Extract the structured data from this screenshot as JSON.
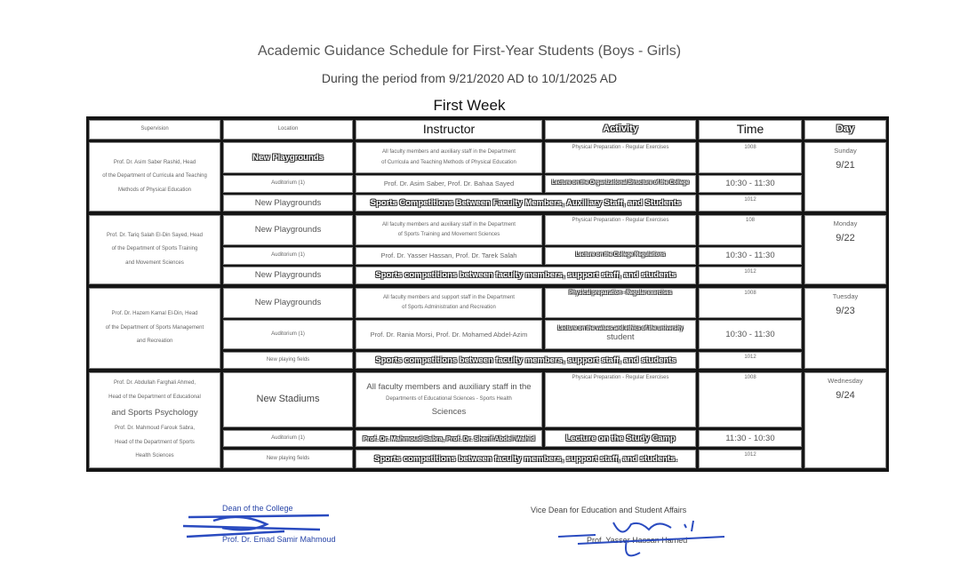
{
  "header": {
    "title": "Academic Guidance Schedule for First-Year Students (Boys - Girls)",
    "period": "During the period from 9/21/2020 AD to 10/1/2025 AD",
    "week": "First Week"
  },
  "columns": [
    "Supervision",
    "Location",
    "Instructor",
    "Activity",
    "Time",
    "Day"
  ],
  "days": [
    {
      "day": "Sunday",
      "date": "9/21",
      "supervision": [
        "Prof. Dr. Asim Saber Rashid, Head",
        "of the Department of Curricula and Teaching",
        "Methods of Physical Education"
      ],
      "sessions": [
        {
          "location": "New Playgrounds",
          "instructor": [
            "All faculty members and auxiliary staff in the Department",
            "of Curricula and Teaching Methods of Physical Education"
          ],
          "activity": "Physical Preparation - Regular Exercises",
          "time": "1008"
        },
        {
          "location": "Auditorium (1)",
          "instructor": [
            "Prof. Dr. Asim Saber, Prof. Dr. Bahaa Sayed"
          ],
          "activity": "Lecture on the Organizational Structure of the College",
          "time": "10:30 - 11:30"
        },
        {
          "location": "New Playgrounds",
          "combined": "Sports Competitions Between Faculty Members, Auxiliary Staff, and Students",
          "time": "1012"
        }
      ]
    },
    {
      "day": "Monday",
      "date": "9/22",
      "supervision": [
        "Prof. Dr. Tariq Salah El-Din Sayed, Head",
        "of the Department of Sports Training",
        "and Movement Sciences"
      ],
      "sessions": [
        {
          "location": "New Playgrounds",
          "instructor": [
            "All faculty members and auxiliary staff in the Department",
            "of Sports Training and Movement Sciences"
          ],
          "activity": "Physical Preparation - Regular Exercises",
          "time": "108"
        },
        {
          "location": "Auditorium (1)",
          "instructor": [
            "Prof. Dr. Yasser Hassan, Prof. Dr. Tarek Salah"
          ],
          "activity": "Lecture on the College Regulations",
          "time": "10:30 - 11:30"
        },
        {
          "location": "New Playgrounds",
          "combined": "Sports competitions between faculty members, support staff, and students",
          "time": "1012"
        }
      ]
    },
    {
      "day": "Tuesday",
      "date": "9/23",
      "supervision": [
        "Prof. Dr. Hazem Kamal El-Din, Head",
        "of the Department of Sports Management",
        "and Recreation"
      ],
      "sessions": [
        {
          "location": "New Playgrounds",
          "instructor": [
            "All faculty members and support staff in the Department",
            "of Sports Administration and Recreation"
          ],
          "activity": "Physical preparation - Regular exercises",
          "time": "1008"
        },
        {
          "location": "Auditorium (1)",
          "instructor": [
            "Prof. Dr. Rania Morsi, Prof. Dr. Mohamed Abdel-Azim"
          ],
          "activity": "Lecture on the values and ethics of the university",
          "activity_extra": "student",
          "time": "10:30 - 11:30"
        },
        {
          "location": "New playing fields",
          "combined": "Sports competitions between faculty members, support staff, and students",
          "time": "1012"
        }
      ]
    },
    {
      "day": "Wednesday",
      "date": "9/24",
      "supervision": [
        "Prof. Dr. Abdullah Farghali Ahmed,",
        "Head of the Department of Educational",
        "and Sports Psychology",
        "Prof. Dr. Mahmoud Farouk Sabra,",
        "Head of the Department of Sports",
        "Health Sciences"
      ],
      "sessions": [
        {
          "location": "New Stadiums",
          "instructor": [
            "All faculty members and auxiliary staff in the",
            "Departments of Educational Sciences - Sports Health",
            "Sciences"
          ],
          "activity": "Physical Preparation - Regular Exercises",
          "time": "1008"
        },
        {
          "location": "Auditorium (1)",
          "instructor": [
            "Prof. Dr. Mahmoud Sabra, Prof. Dr. Sherif Abdel-Wahid"
          ],
          "activity": "Lecture on the Study Camp",
          "time": "11:30 - 10:30"
        },
        {
          "location": "New playing fields",
          "combined": "Sports competitions between faculty members, support staff, and students.",
          "time": "1012"
        }
      ]
    }
  ],
  "signatures": {
    "left_title": "Dean of the College",
    "left_name": "Prof. Dr. Emad Samir Mahmoud",
    "right_title": "Vice Dean for Education and Student Affairs",
    "right_name": "Prof. Yasser Hassan Hamed"
  }
}
